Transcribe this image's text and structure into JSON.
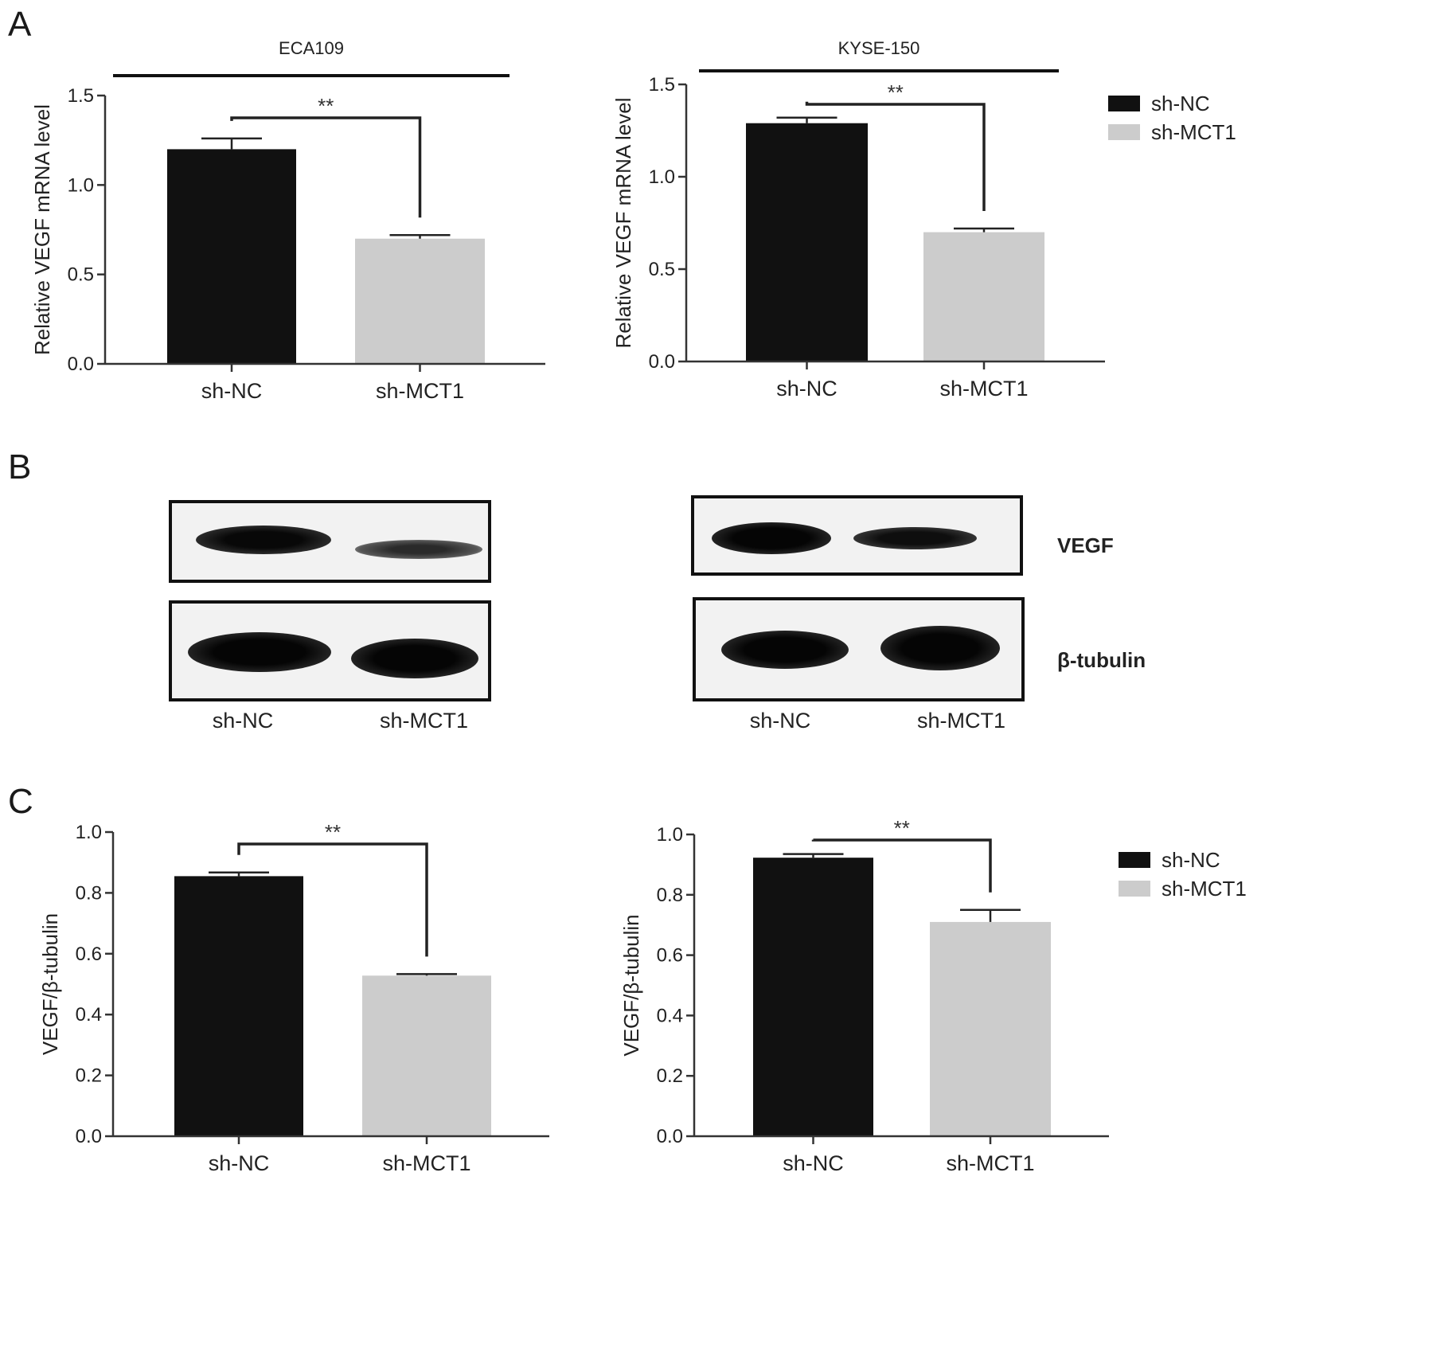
{
  "panels": {
    "a": "A",
    "b": "B",
    "c": "C"
  },
  "colors": {
    "sh_nc": "#111111",
    "sh_mct1": "#cccccc"
  },
  "legend": [
    {
      "label": "sh-NC",
      "color": "#111111"
    },
    {
      "label": "sh-MCT1",
      "color": "#cccccc"
    }
  ],
  "chart_data": [
    {
      "id": "a_left",
      "type": "bar",
      "title": "ECA109",
      "ylabel": "Relative VEGF mRNA level",
      "ylim": [
        0,
        1.5
      ],
      "yticks": [
        "0.0",
        "0.5",
        "1.0",
        "1.5"
      ],
      "ytick_values": [
        0,
        0.5,
        1.0,
        1.5
      ],
      "categories": [
        "sh-NC",
        "sh-MCT1"
      ],
      "values": [
        1.2,
        0.7
      ],
      "errors": [
        0.06,
        0.02
      ],
      "significance": "**"
    },
    {
      "id": "a_right",
      "type": "bar",
      "title": "KYSE-150",
      "ylabel": "Relative VEGF mRNA level",
      "ylim": [
        0,
        1.5
      ],
      "yticks": [
        "0.0",
        "0.5",
        "1.0",
        "1.5"
      ],
      "ytick_values": [
        0,
        0.5,
        1.0,
        1.5
      ],
      "categories": [
        "sh-NC",
        "sh-MCT1"
      ],
      "values": [
        1.29,
        0.7
      ],
      "errors": [
        0.03,
        0.02
      ],
      "significance": "**"
    },
    {
      "id": "c_left",
      "type": "bar",
      "title": "",
      "ylabel": "VEGF/β-tubulin",
      "ylim": [
        0,
        1.0
      ],
      "yticks": [
        "0.0",
        "0.2",
        "0.4",
        "0.6",
        "0.8",
        "1.0"
      ],
      "ytick_values": [
        0,
        0.2,
        0.4,
        0.6,
        0.8,
        1.0
      ],
      "categories": [
        "sh-NC",
        "sh-MCT1"
      ],
      "values": [
        0.855,
        0.528
      ],
      "errors": [
        0.012,
        0.005
      ],
      "significance": "**"
    },
    {
      "id": "c_right",
      "type": "bar",
      "title": "",
      "ylabel": "VEGF/β-tubulin",
      "ylim": [
        0,
        1.0
      ],
      "yticks": [
        "0.0",
        "0.2",
        "0.4",
        "0.6",
        "0.8",
        "1.0"
      ],
      "ytick_values": [
        0,
        0.2,
        0.4,
        0.6,
        0.8,
        1.0
      ],
      "categories": [
        "sh-NC",
        "sh-MCT1"
      ],
      "values": [
        0.923,
        0.71
      ],
      "errors": [
        0.012,
        0.04
      ],
      "significance": "**"
    }
  ],
  "blots": {
    "labels": {
      "vegf": "VEGF",
      "tubulin": "β-tubulin"
    },
    "left_lanes": [
      "sh-NC",
      "sh-MCT1"
    ],
    "right_lanes": [
      "sh-NC",
      "sh-MCT1"
    ]
  }
}
